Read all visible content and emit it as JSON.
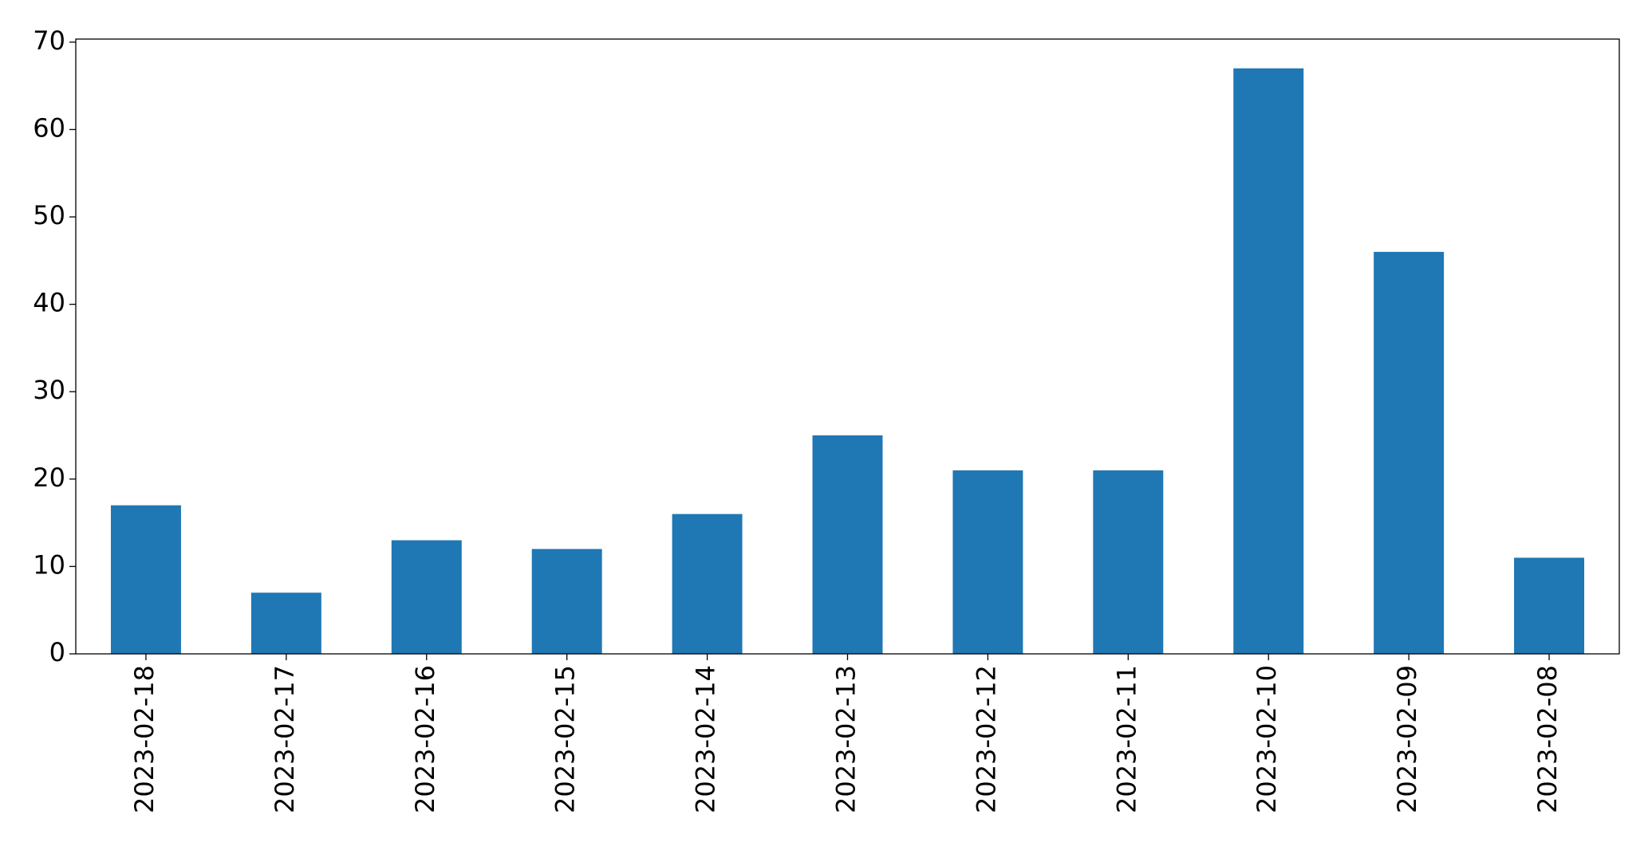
{
  "chart_data": {
    "type": "bar",
    "categories": [
      "2023-02-18",
      "2023-02-17",
      "2023-02-16",
      "2023-02-15",
      "2023-02-14",
      "2023-02-13",
      "2023-02-12",
      "2023-02-11",
      "2023-02-10",
      "2023-02-09",
      "2023-02-08"
    ],
    "values": [
      17,
      7,
      13,
      12,
      16,
      25,
      21,
      21,
      67,
      46,
      11
    ],
    "color": "#1f77b4",
    "ylim": [
      0,
      70.35
    ],
    "yticks": [
      0,
      10,
      20,
      30,
      40,
      50,
      60,
      70
    ],
    "grid": false
  }
}
